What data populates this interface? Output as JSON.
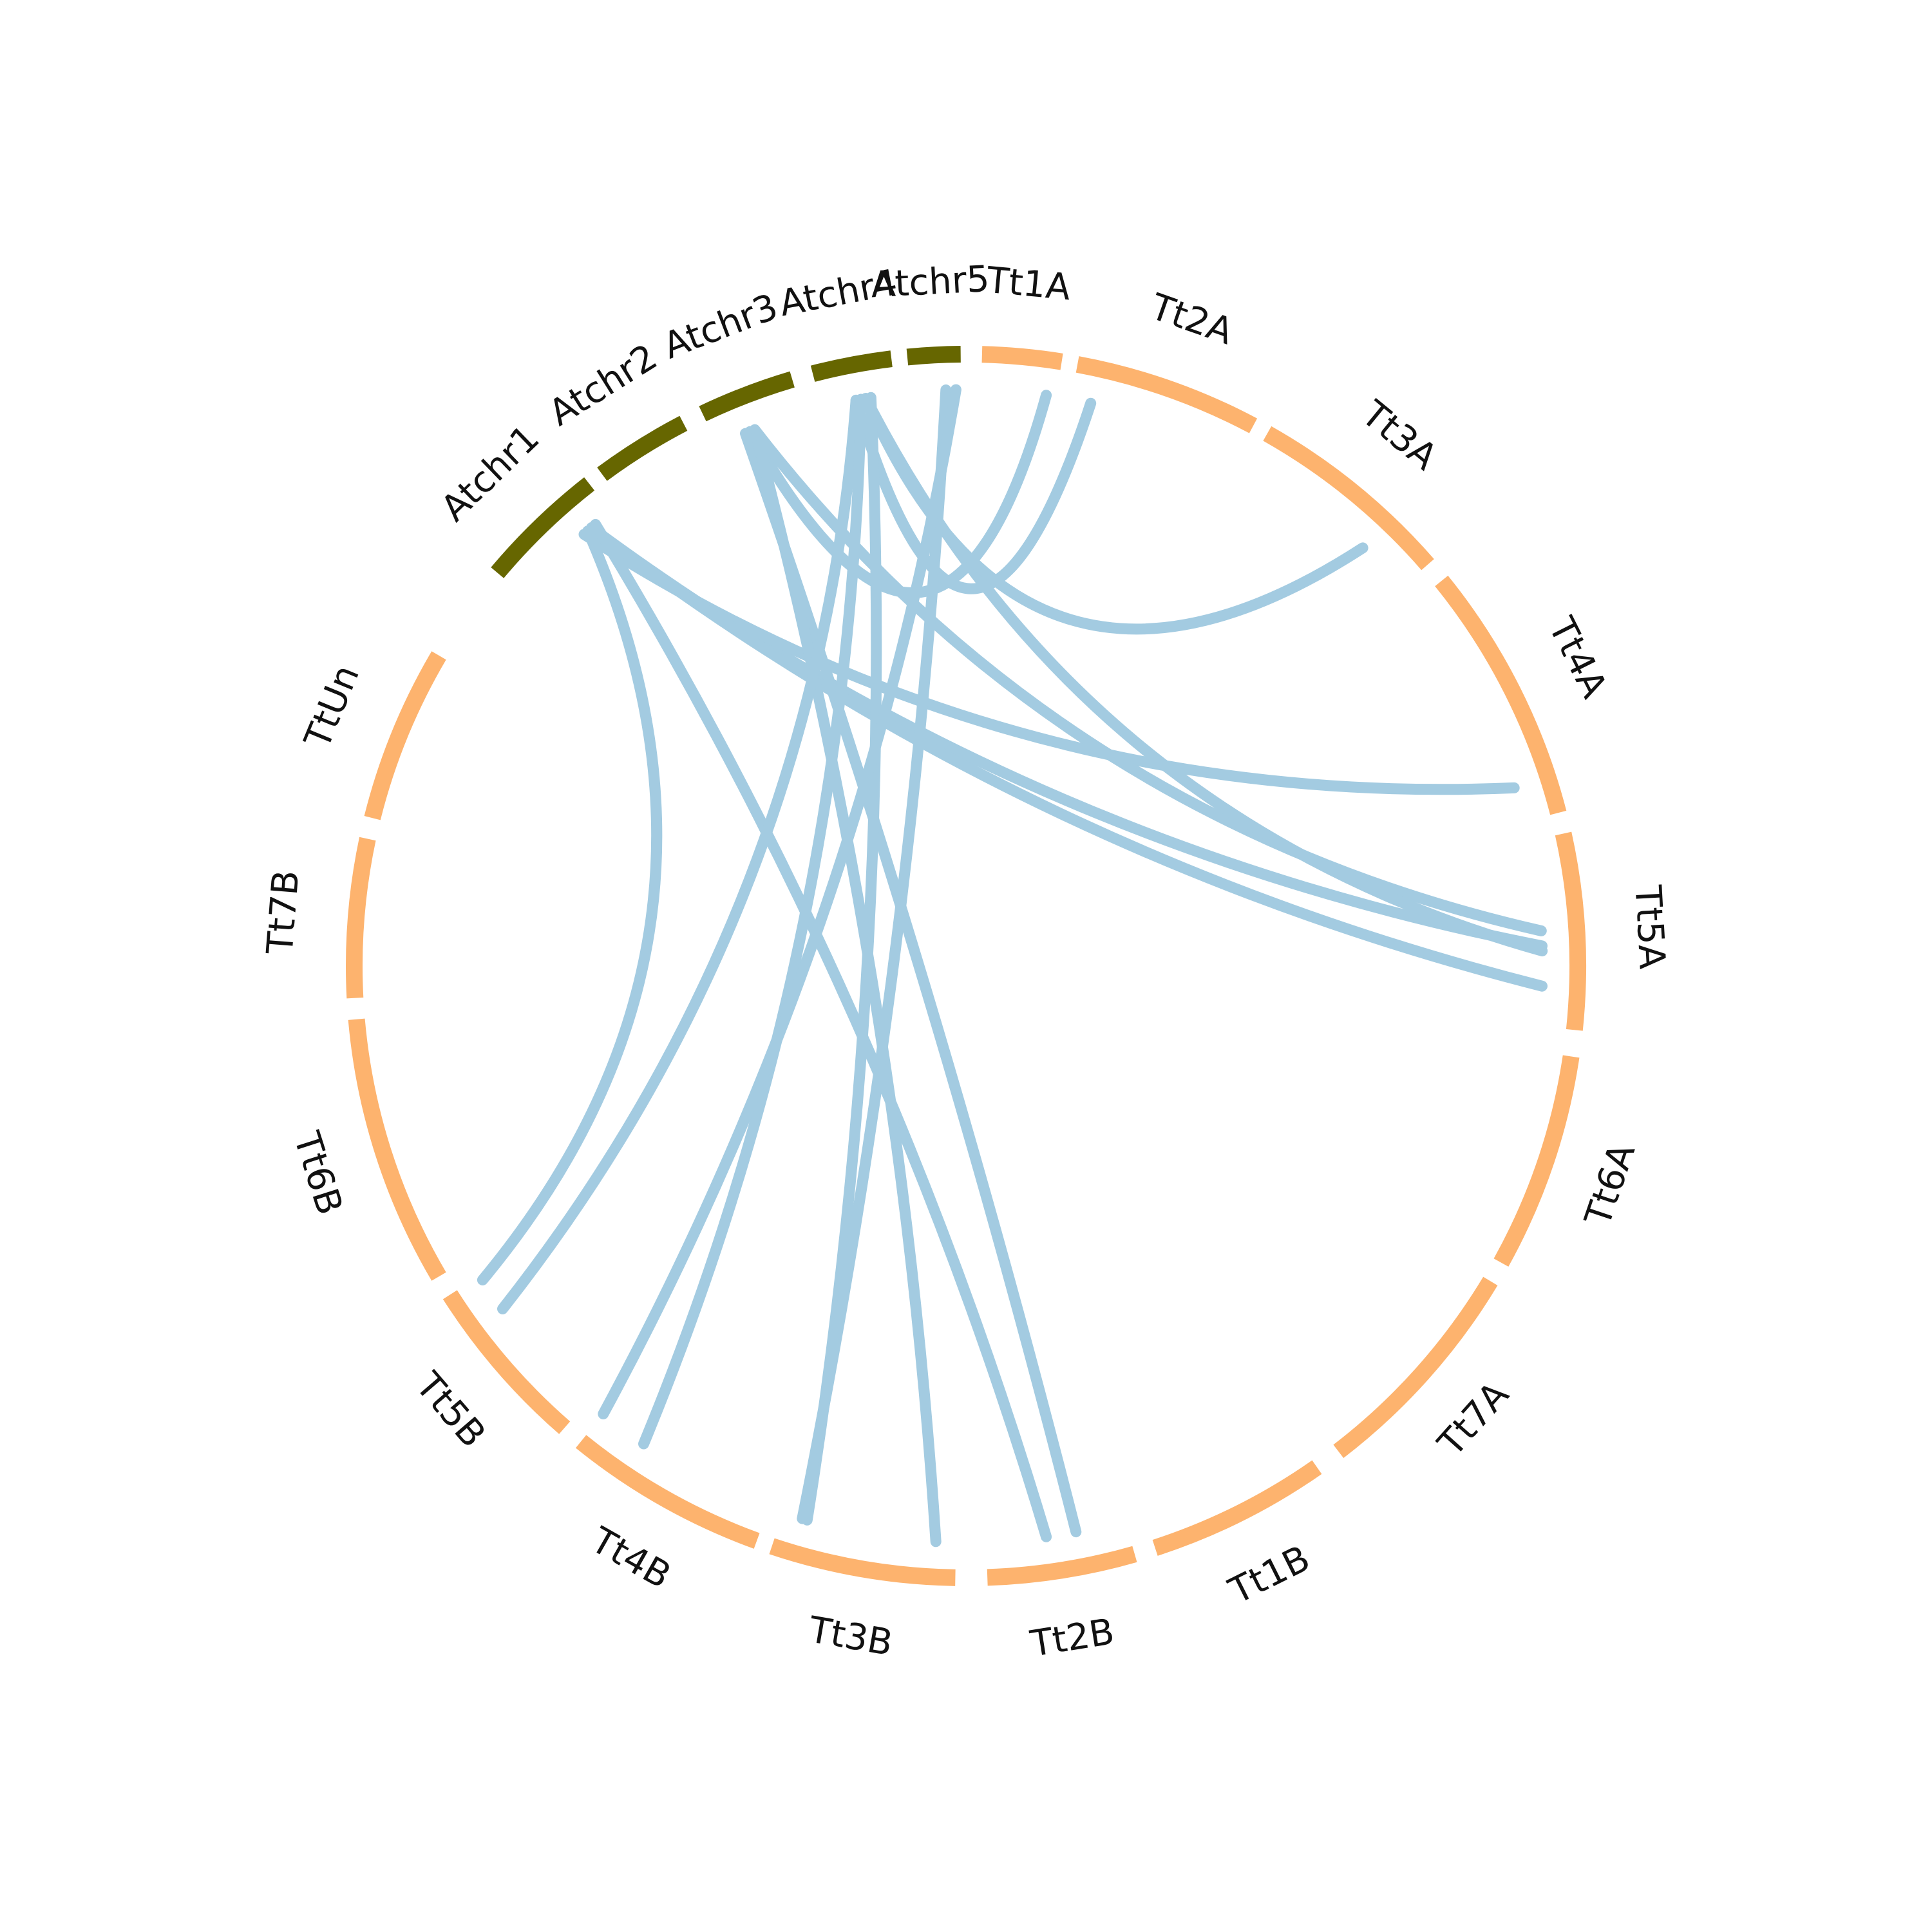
{
  "colors": {
    "arabidopsis": "#666600",
    "wheat": "#fdb36e",
    "link": "#a3cbe1"
  },
  "segments": [
    {
      "label": "Atchr1",
      "group": "arabidopsis"
    },
    {
      "label": "Atchr2",
      "group": "arabidopsis"
    },
    {
      "label": "Atchr3",
      "group": "arabidopsis"
    },
    {
      "label": "Atchr4",
      "group": "arabidopsis"
    },
    {
      "label": "Atchr5",
      "group": "arabidopsis"
    },
    {
      "label": "Tt1A",
      "group": "wheat"
    },
    {
      "label": "Tt2A",
      "group": "wheat"
    },
    {
      "label": "Tt3A",
      "group": "wheat"
    },
    {
      "label": "Tt4A",
      "group": "wheat"
    },
    {
      "label": "Tt5A",
      "group": "wheat"
    },
    {
      "label": "Tt6A",
      "group": "wheat"
    },
    {
      "label": "Tt7A",
      "group": "wheat"
    },
    {
      "label": "Tt1B",
      "group": "wheat"
    },
    {
      "label": "Tt2B",
      "group": "wheat"
    },
    {
      "label": "Tt3B",
      "group": "wheat"
    },
    {
      "label": "Tt4B",
      "group": "wheat"
    },
    {
      "label": "Tt5B",
      "group": "wheat"
    },
    {
      "label": "Tt6B",
      "group": "wheat"
    },
    {
      "label": "Tt7B",
      "group": "wheat"
    },
    {
      "label": "TtUn",
      "group": "wheat"
    }
  ],
  "links": [
    {
      "from": "Atchr1",
      "to": "Tt5A"
    },
    {
      "from": "Atchr1",
      "to": "Tt4A"
    },
    {
      "from": "Atchr1",
      "to": "Tt5A"
    },
    {
      "from": "Atchr1",
      "to": "Tt6B"
    },
    {
      "from": "Atchr1",
      "to": "Tt1B"
    },
    {
      "from": "Atchr3",
      "to": "Tt1A"
    },
    {
      "from": "Atchr3",
      "to": "Tt1B"
    },
    {
      "from": "Atchr3",
      "to": "Tt2B"
    },
    {
      "from": "Atchr3",
      "to": "Tt5A"
    },
    {
      "from": "Atchr4",
      "to": "Tt2A"
    },
    {
      "from": "Atchr4",
      "to": "Tt5A"
    },
    {
      "from": "Atchr4",
      "to": "Tt3A"
    },
    {
      "from": "Atchr4",
      "to": "Tt5B"
    },
    {
      "from": "Atchr4",
      "to": "Tt4B"
    },
    {
      "from": "Atchr4",
      "to": "Tt3B"
    },
    {
      "from": "Atchr5",
      "to": "Tt3B"
    },
    {
      "from": "Atchr5",
      "to": "Tt4B"
    }
  ]
}
